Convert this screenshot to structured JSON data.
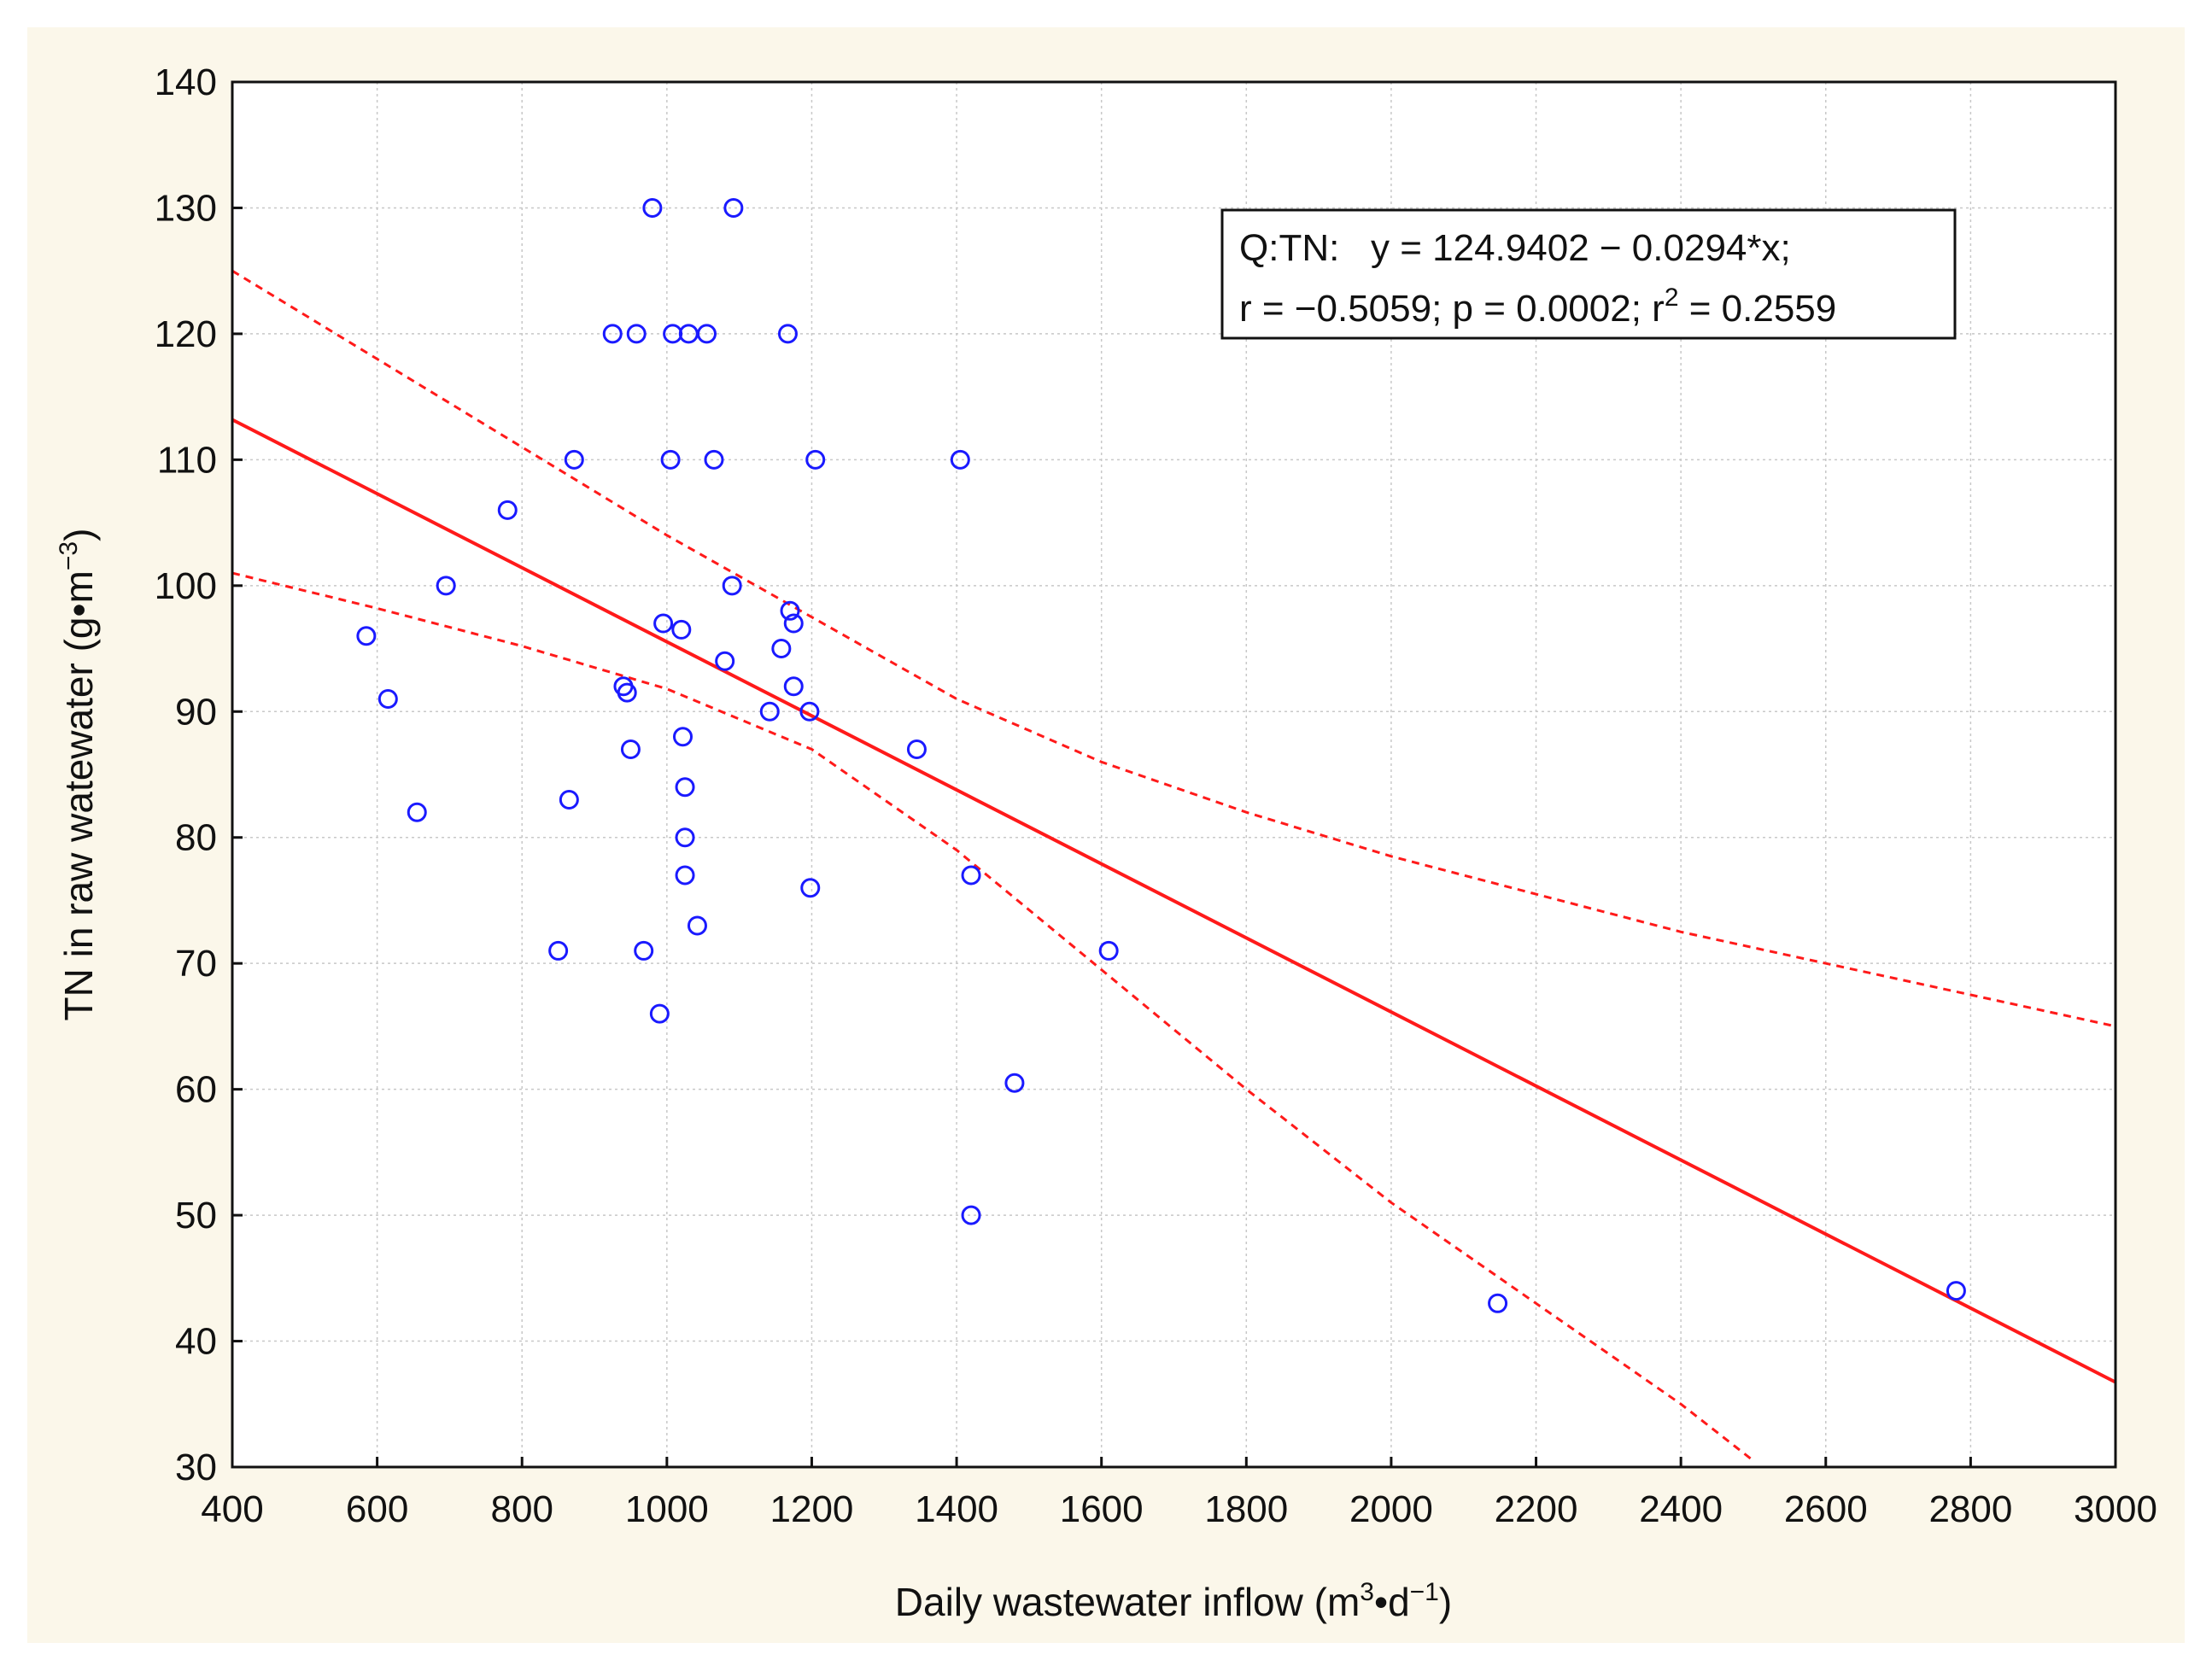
{
  "chart_data": {
    "type": "scatter",
    "background_color": "#fbf7ea",
    "point_color": "#1a1aff",
    "line_color": "#ff1a1a",
    "xlabel": {
      "prefix": "Daily wastewater inflow (m",
      "sup1": "3",
      "mid": "•d",
      "sup2": "−1",
      "suffix": ")"
    },
    "ylabel": {
      "prefix": "TN in raw watewater (g•m",
      "sup": "−3",
      "suffix": ")"
    },
    "xlim": [
      400,
      3000
    ],
    "ylim": [
      30,
      140
    ],
    "xticks": [
      "400",
      "600",
      "800",
      "1000",
      "1200",
      "1400",
      "1600",
      "1800",
      "2000",
      "2200",
      "2400",
      "2600",
      "2800",
      "3000"
    ],
    "yticks": [
      "30",
      "40",
      "50",
      "60",
      "70",
      "80",
      "90",
      "100",
      "110",
      "120",
      "130",
      "140"
    ],
    "grid": true,
    "legend": {
      "line1": "Q:TN:   y = 124.9402 − 0.0294*x;",
      "line2_prefix": "r = −0.5059; p = 0.0002; r",
      "line2_sup": "2",
      "line2_suffix": " = 0.2559",
      "placement": "top-right"
    },
    "regression": {
      "intercept": 124.9402,
      "slope": -0.0294
    },
    "confidence_upper": [
      [
        400,
        125
      ],
      [
        600,
        118
      ],
      [
        800,
        111
      ],
      [
        1000,
        104
      ],
      [
        1200,
        97.5
      ],
      [
        1400,
        91
      ],
      [
        1600,
        86
      ],
      [
        1800,
        82
      ],
      [
        2000,
        78.5
      ],
      [
        2200,
        75.5
      ],
      [
        2400,
        72.5
      ],
      [
        2600,
        70
      ],
      [
        2800,
        67.5
      ],
      [
        3000,
        65
      ]
    ],
    "confidence_lower": [
      [
        400,
        101
      ],
      [
        600,
        98.2
      ],
      [
        800,
        95.2
      ],
      [
        1000,
        91.8
      ],
      [
        1200,
        87
      ],
      [
        1400,
        79
      ],
      [
        1600,
        69.5
      ],
      [
        1800,
        60
      ],
      [
        2000,
        51
      ],
      [
        2200,
        43
      ],
      [
        2400,
        35
      ],
      [
        2500,
        30.5
      ]
    ],
    "points": [
      [
        585,
        96
      ],
      [
        615,
        91
      ],
      [
        655,
        82
      ],
      [
        695,
        100
      ],
      [
        780,
        106
      ],
      [
        850,
        71
      ],
      [
        865,
        83
      ],
      [
        872,
        110
      ],
      [
        925,
        120
      ],
      [
        940,
        92
      ],
      [
        945,
        91.5
      ],
      [
        950,
        87
      ],
      [
        958,
        120
      ],
      [
        968,
        71
      ],
      [
        980,
        130
      ],
      [
        990,
        66
      ],
      [
        995,
        97
      ],
      [
        1005,
        110
      ],
      [
        1008,
        120
      ],
      [
        1020,
        96.5
      ],
      [
        1022,
        88
      ],
      [
        1025,
        84
      ],
      [
        1025,
        80
      ],
      [
        1025,
        77
      ],
      [
        1030,
        120
      ],
      [
        1042,
        73
      ],
      [
        1055,
        120
      ],
      [
        1065,
        110
      ],
      [
        1080,
        94
      ],
      [
        1090,
        100
      ],
      [
        1092,
        130
      ],
      [
        1142,
        90
      ],
      [
        1158,
        95
      ],
      [
        1167,
        120
      ],
      [
        1170,
        98
      ],
      [
        1175,
        97
      ],
      [
        1175,
        92
      ],
      [
        1197,
        90
      ],
      [
        1198,
        76
      ],
      [
        1205,
        110
      ],
      [
        1345,
        87
      ],
      [
        1405,
        110
      ],
      [
        1420,
        77
      ],
      [
        1420,
        50
      ],
      [
        1480,
        60.5
      ],
      [
        1610,
        71
      ],
      [
        2147,
        43
      ],
      [
        2780,
        44
      ]
    ]
  }
}
